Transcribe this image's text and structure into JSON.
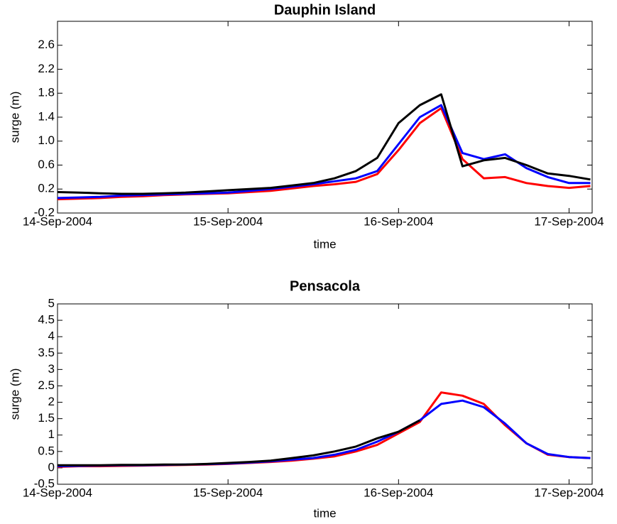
{
  "chart_data": [
    {
      "type": "line",
      "title": "Dauphin Island",
      "x_label": "time",
      "y_label": "surge (m)",
      "x": [
        "2004-09-14T00:00",
        "2004-09-14T03:00",
        "2004-09-14T06:00",
        "2004-09-14T09:00",
        "2004-09-14T12:00",
        "2004-09-14T15:00",
        "2004-09-14T18:00",
        "2004-09-14T21:00",
        "2004-09-15T00:00",
        "2004-09-15T03:00",
        "2004-09-15T06:00",
        "2004-09-15T09:00",
        "2004-09-15T12:00",
        "2004-09-15T15:00",
        "2004-09-15T18:00",
        "2004-09-15T21:00",
        "2004-09-16T00:00",
        "2004-09-16T03:00",
        "2004-09-16T06:00",
        "2004-09-16T09:00",
        "2004-09-16T12:00",
        "2004-09-16T15:00",
        "2004-09-16T18:00",
        "2004-09-16T21:00",
        "2004-09-17T00:00",
        "2004-09-17T03:00"
      ],
      "series": [
        {
          "color": "#ff0000",
          "values": [
            0.03,
            0.04,
            0.05,
            0.07,
            0.08,
            0.1,
            0.11,
            0.12,
            0.13,
            0.15,
            0.17,
            0.21,
            0.25,
            0.28,
            0.32,
            0.45,
            0.85,
            1.3,
            1.55,
            0.7,
            0.38,
            0.4,
            0.3,
            0.25,
            0.22,
            0.25
          ]
        },
        {
          "color": "#0000ff",
          "values": [
            0.05,
            0.06,
            0.07,
            0.09,
            0.1,
            0.11,
            0.12,
            0.13,
            0.14,
            0.17,
            0.2,
            0.24,
            0.28,
            0.33,
            0.38,
            0.5,
            0.95,
            1.4,
            1.6,
            0.8,
            0.7,
            0.78,
            0.55,
            0.4,
            0.3,
            0.3
          ]
        },
        {
          "color": "#000000",
          "values": [
            0.15,
            0.14,
            0.13,
            0.12,
            0.12,
            0.13,
            0.14,
            0.16,
            0.18,
            0.2,
            0.22,
            0.26,
            0.3,
            0.38,
            0.5,
            0.72,
            1.3,
            1.6,
            1.78,
            0.58,
            0.68,
            0.72,
            0.6,
            0.46,
            0.42,
            0.36
          ]
        }
      ],
      "xlim": [
        "2004-09-14T00:00",
        "2004-09-17T03:15"
      ],
      "xticks": [
        {
          "value": "2004-09-14T00:00",
          "label": "14-Sep-2004"
        },
        {
          "value": "2004-09-15T00:00",
          "label": "15-Sep-2004"
        },
        {
          "value": "2004-09-16T00:00",
          "label": "16-Sep-2004"
        },
        {
          "value": "2004-09-17T00:00",
          "label": "17-Sep-2004"
        }
      ],
      "ylim": [
        -0.2,
        3.0
      ],
      "yticks": [
        -0.2,
        0.2,
        0.6,
        {
          "value": 1.0,
          "label": "1.0"
        },
        1.4,
        1.8,
        2.2,
        2.6
      ]
    },
    {
      "type": "line",
      "title": "Pensacola",
      "x_label": "time",
      "y_label": "surge (m)",
      "x": [
        "2004-09-14T00:00",
        "2004-09-14T03:00",
        "2004-09-14T06:00",
        "2004-09-14T09:00",
        "2004-09-14T12:00",
        "2004-09-14T15:00",
        "2004-09-14T18:00",
        "2004-09-14T21:00",
        "2004-09-15T00:00",
        "2004-09-15T03:00",
        "2004-09-15T06:00",
        "2004-09-15T09:00",
        "2004-09-15T12:00",
        "2004-09-15T15:00",
        "2004-09-15T18:00",
        "2004-09-15T21:00",
        "2004-09-16T00:00",
        "2004-09-16T03:00",
        "2004-09-16T06:00",
        "2004-09-16T09:00",
        "2004-09-16T12:00",
        "2004-09-16T15:00",
        "2004-09-16T18:00",
        "2004-09-16T21:00",
        "2004-09-17T00:00",
        "2004-09-17T03:00"
      ],
      "series": [
        {
          "color": "#ff0000",
          "values": [
            0.03,
            0.05,
            0.05,
            0.06,
            0.07,
            0.08,
            0.09,
            0.1,
            0.12,
            0.15,
            0.18,
            0.22,
            0.28,
            0.35,
            0.5,
            0.7,
            1.05,
            1.4,
            2.3,
            2.2,
            1.95,
            1.3,
            0.75,
            0.4,
            0.33,
            0.3
          ]
        },
        {
          "color": "#0000ff",
          "values": [
            0.05,
            0.06,
            0.07,
            0.08,
            0.08,
            0.09,
            0.1,
            0.11,
            0.13,
            0.16,
            0.2,
            0.25,
            0.3,
            0.4,
            0.55,
            0.8,
            1.1,
            1.45,
            1.95,
            2.05,
            1.85,
            1.35,
            0.75,
            0.42,
            0.33,
            0.3
          ]
        },
        {
          "color": "#000000",
          "values": [
            0.08,
            0.08,
            0.08,
            0.09,
            0.09,
            0.1,
            0.1,
            0.12,
            0.15,
            0.18,
            0.22,
            0.3,
            0.38,
            0.5,
            0.65,
            0.9,
            1.1,
            1.45,
            null,
            null,
            null,
            null,
            null,
            null,
            null,
            null
          ]
        }
      ],
      "xlim": [
        "2004-09-14T00:00",
        "2004-09-17T03:15"
      ],
      "xticks": [
        {
          "value": "2004-09-14T00:00",
          "label": "14-Sep-2004"
        },
        {
          "value": "2004-09-15T00:00",
          "label": "15-Sep-2004"
        },
        {
          "value": "2004-09-16T00:00",
          "label": "16-Sep-2004"
        },
        {
          "value": "2004-09-17T00:00",
          "label": "17-Sep-2004"
        }
      ],
      "ylim": [
        -0.5,
        5
      ],
      "yticks": [
        -0.5,
        0,
        0.5,
        1,
        1.5,
        2,
        2.5,
        3,
        3.5,
        4,
        4.5,
        5
      ]
    }
  ]
}
